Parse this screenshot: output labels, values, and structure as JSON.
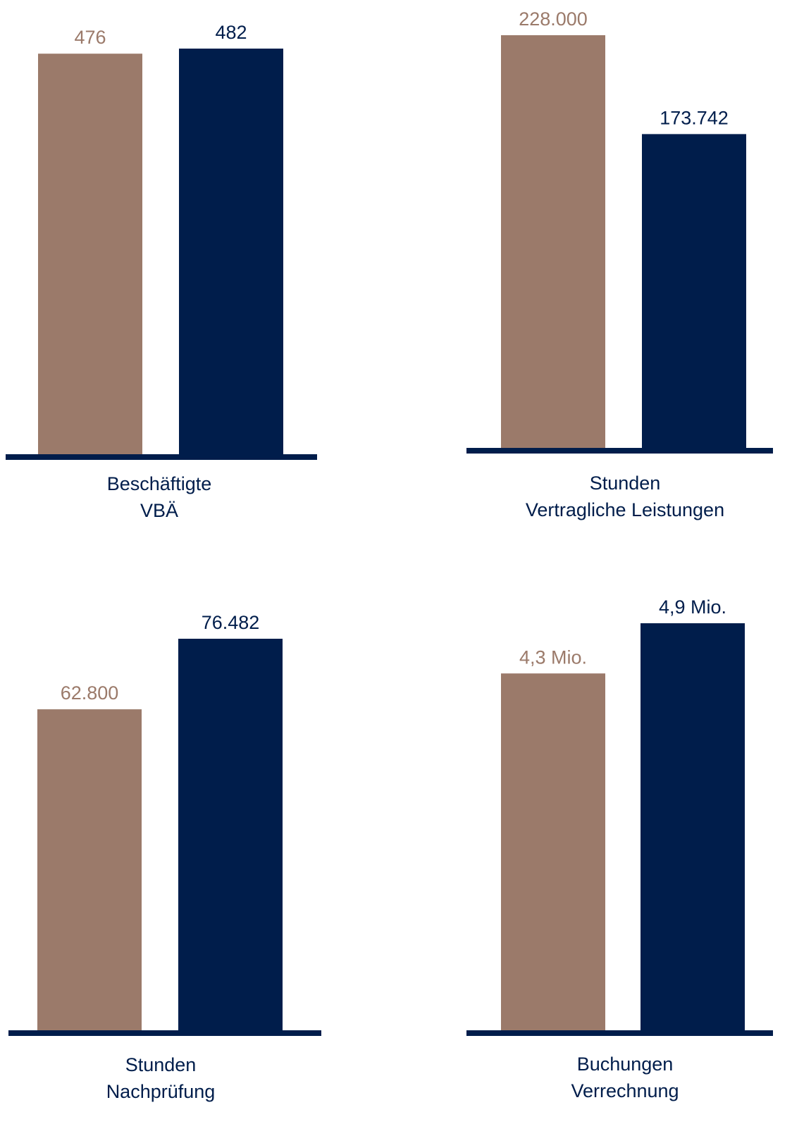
{
  "colors": {
    "previous": "#9b7a6a",
    "current": "#001d4b",
    "axis": "#001d4b"
  },
  "chart_data": [
    {
      "type": "bar",
      "caption": [
        "Beschäftigte",
        "VBÄ"
      ],
      "values": [
        476,
        482
      ],
      "labels": [
        "476",
        "482"
      ]
    },
    {
      "type": "bar",
      "caption": [
        "Stunden",
        "Vertragliche Leistungen"
      ],
      "values": [
        228000,
        173742
      ],
      "labels": [
        "228.000",
        "173.742"
      ]
    },
    {
      "type": "bar",
      "caption": [
        "Stunden",
        "Nachprüfung"
      ],
      "values": [
        62800,
        76482
      ],
      "labels": [
        "62.800",
        "76.482"
      ]
    },
    {
      "type": "bar",
      "caption": [
        "Buchungen",
        "Verrechnung"
      ],
      "values": [
        4.3,
        4.9
      ],
      "labels": [
        "4,3 Mio.",
        "4,9 Mio."
      ]
    }
  ]
}
